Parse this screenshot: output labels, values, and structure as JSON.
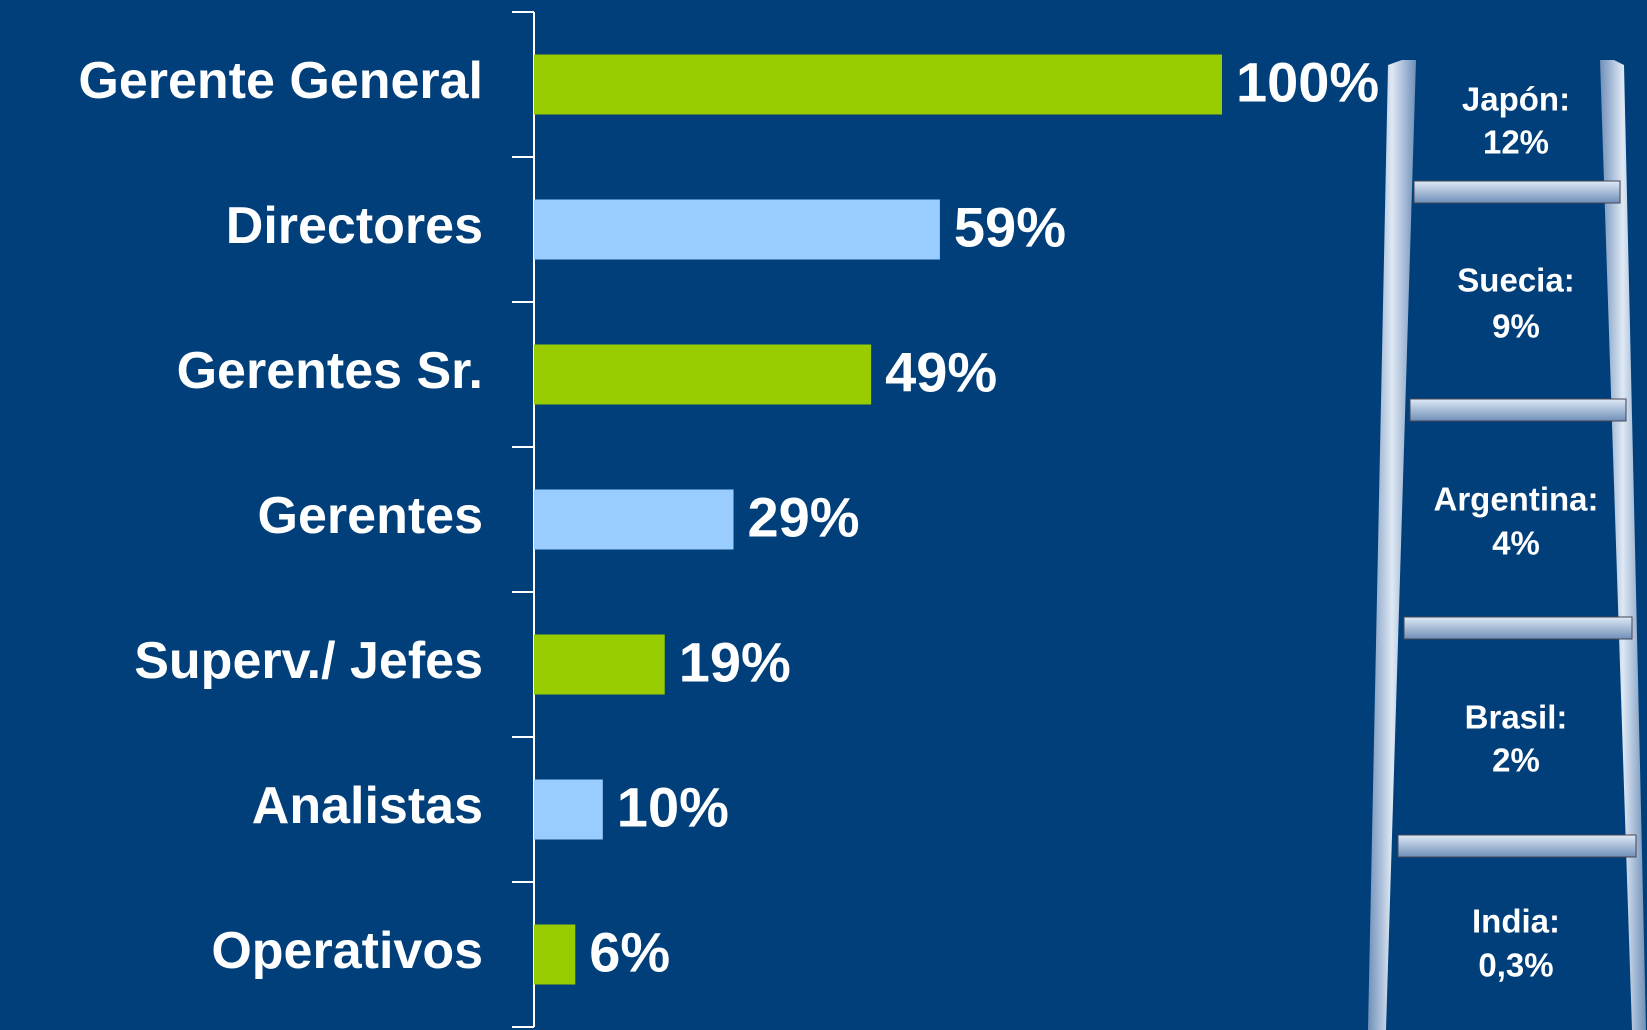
{
  "chart_data": {
    "type": "bar",
    "orientation": "horizontal",
    "categories": [
      "Gerente General",
      "Directores",
      "Gerentes Sr.",
      "Gerentes",
      "Superv./ Jefes",
      "Analistas",
      "Operativos"
    ],
    "values": [
      100,
      59,
      49,
      29,
      19,
      10,
      6
    ],
    "value_labels": [
      "100%",
      "59%",
      "49%",
      "29%",
      "19%",
      "10%",
      "6%"
    ],
    "colors": [
      "#99cc00",
      "#99ccff",
      "#99cc00",
      "#99ccff",
      "#99cc00",
      "#99ccff",
      "#99cc00"
    ],
    "xlim": [
      0,
      100
    ],
    "ladder": [
      {
        "country": "Japón:",
        "share": "12%"
      },
      {
        "country": "Suecia:",
        "share": "9%"
      },
      {
        "country": "Argentina:",
        "share": "4%"
      },
      {
        "country": "Brasil:",
        "share": "2%"
      },
      {
        "country": "India:",
        "share": "0,3%"
      }
    ]
  }
}
